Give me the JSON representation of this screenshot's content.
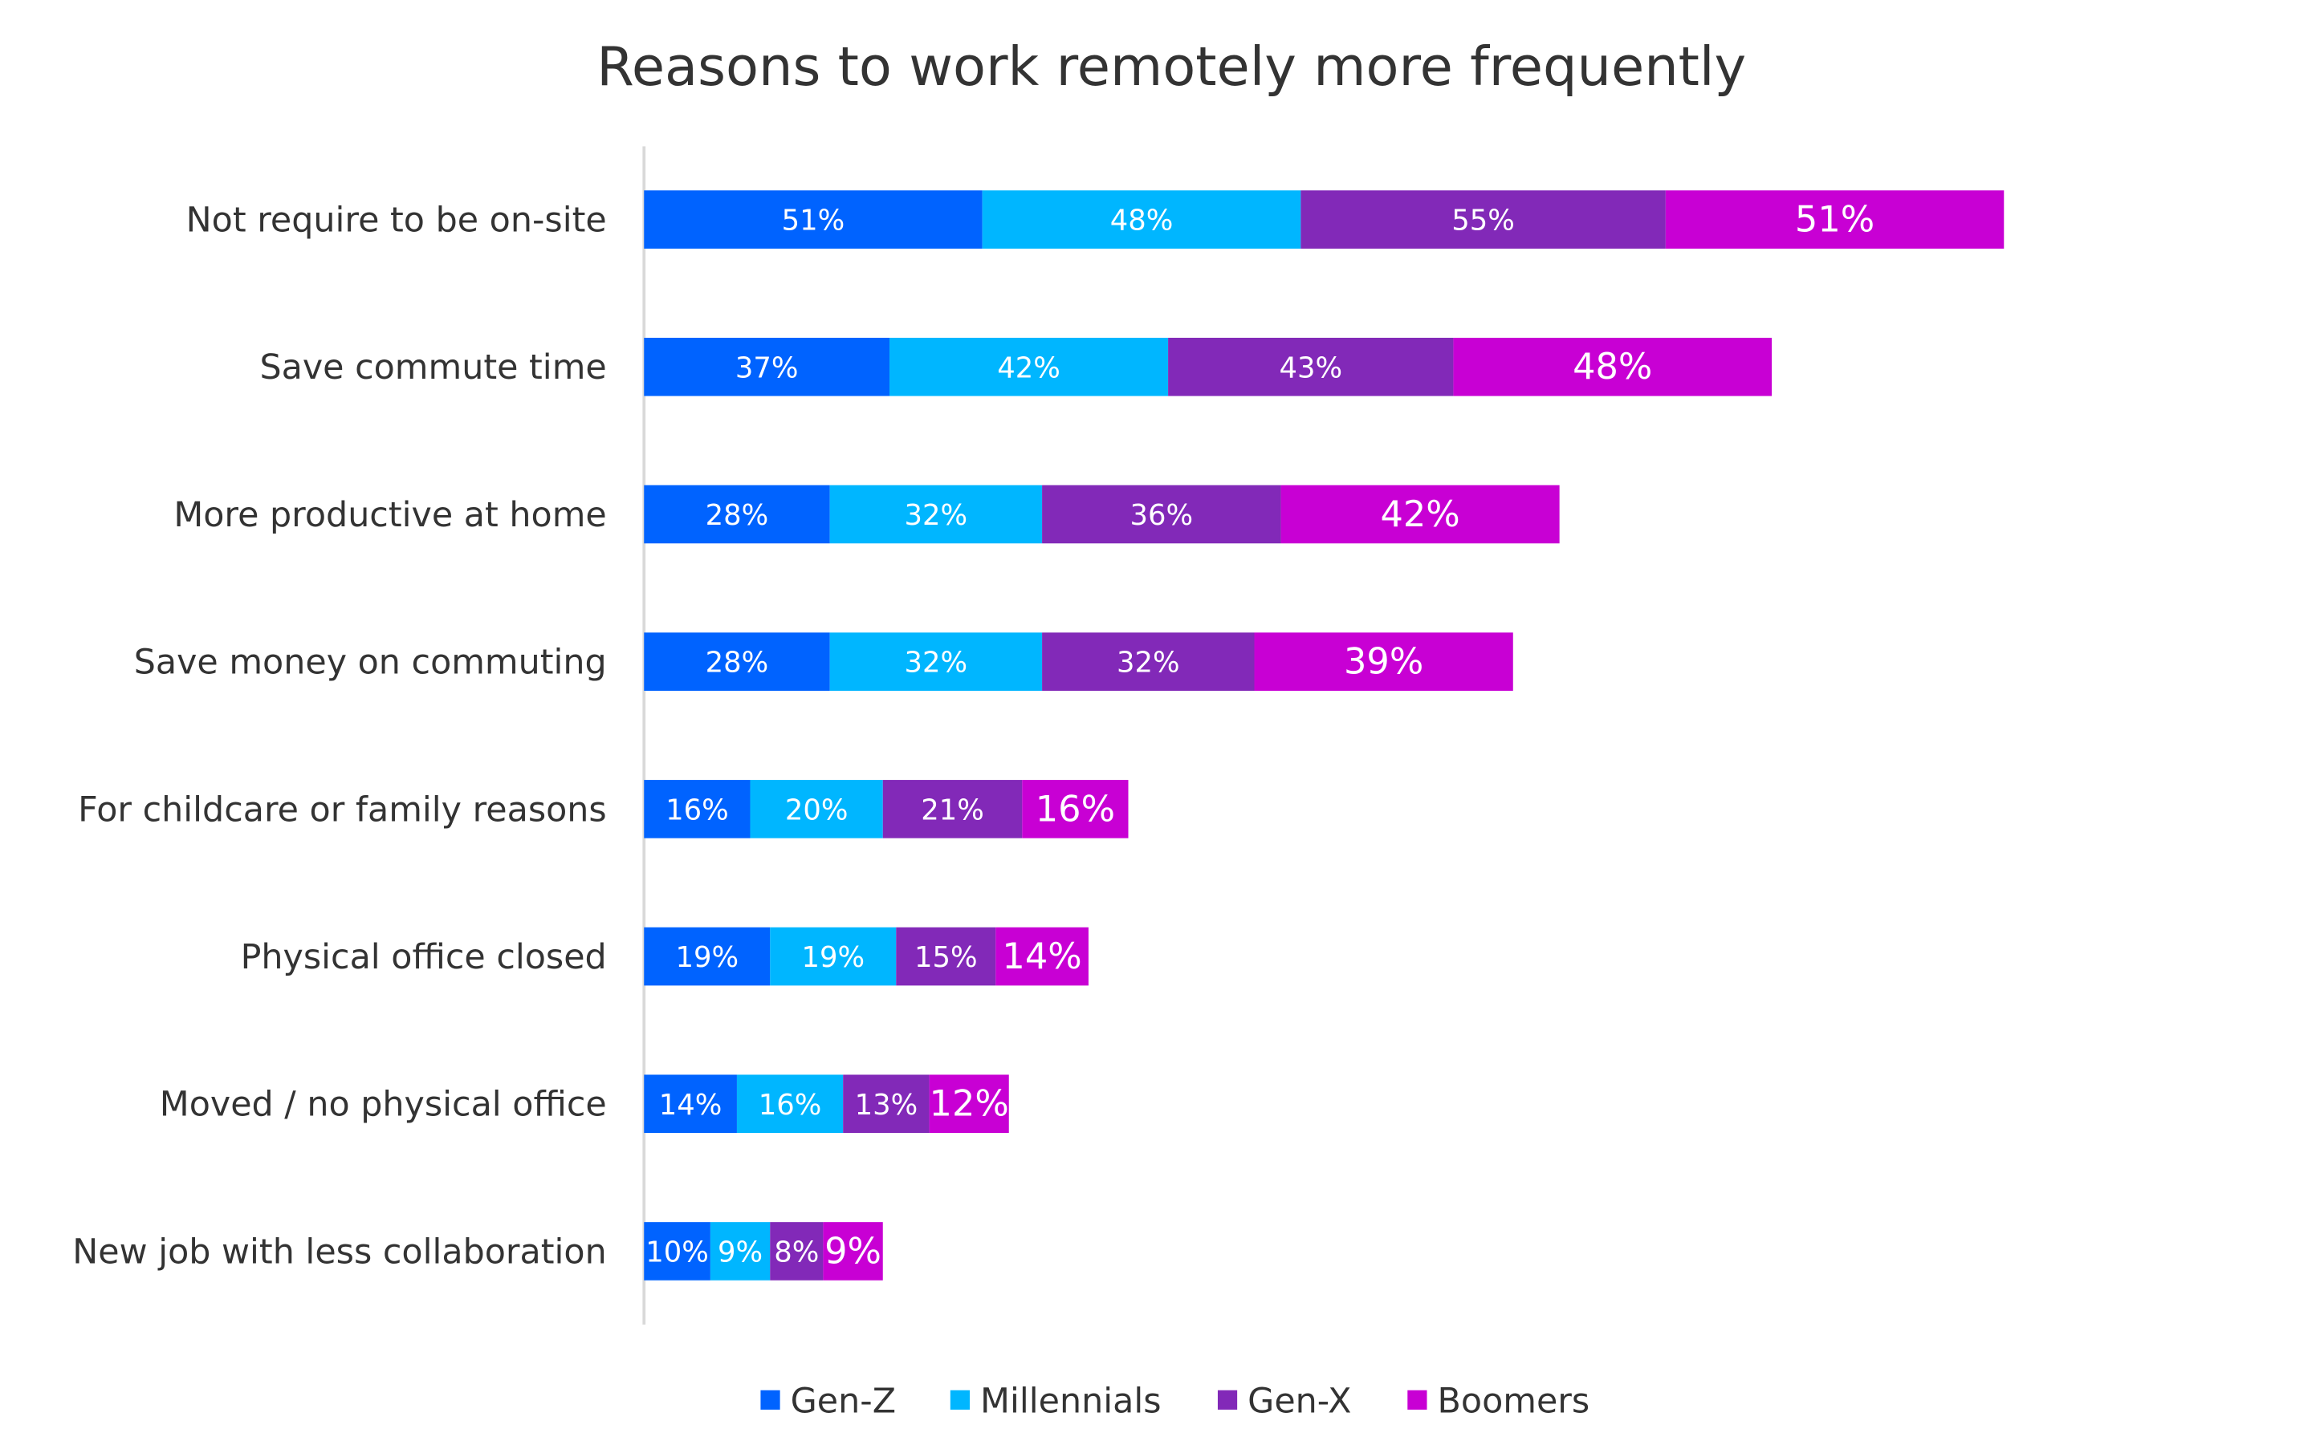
{
  "chart_data": {
    "type": "bar",
    "orientation": "horizontal",
    "stacked": true,
    "title": "Reasons to work remotely more frequently",
    "categories": [
      "Not require to be on-site",
      "Save commute time",
      "More productive at home",
      "Save money on commuting",
      "For childcare or family reasons",
      "Physical office closed",
      "Moved / no physical office",
      "New job with less collaboration"
    ],
    "series": [
      {
        "name": "Gen-Z",
        "color": "#0063FF",
        "values": [
          51,
          37,
          28,
          28,
          16,
          19,
          14,
          10
        ]
      },
      {
        "name": "Millennials",
        "color": "#00B6FF",
        "values": [
          48,
          42,
          32,
          32,
          20,
          19,
          16,
          9
        ]
      },
      {
        "name": "Gen-X",
        "color": "#8229B8",
        "values": [
          55,
          43,
          36,
          32,
          21,
          15,
          13,
          8
        ]
      },
      {
        "name": "Boomers",
        "color": "#C800D4",
        "values": [
          51,
          48,
          42,
          39,
          16,
          14,
          12,
          9
        ]
      }
    ],
    "value_suffix": "%",
    "legend_position": "bottom",
    "grid": false,
    "xaxis_visible": false
  }
}
